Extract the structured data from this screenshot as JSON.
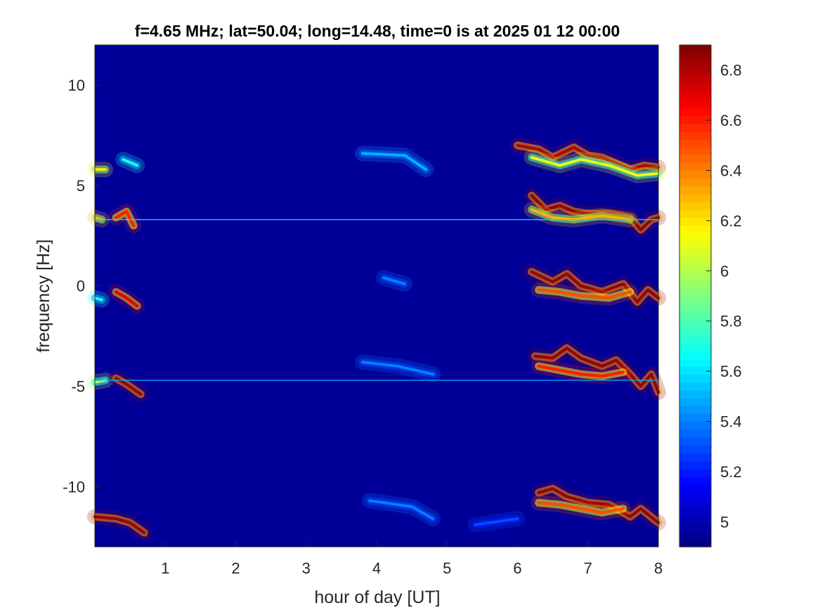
{
  "chart_data": {
    "type": "heatmap",
    "title": "f=4.65 MHz;  lat=50.04; long=14.48, time=0 is at 2025 01 12 00:00",
    "xlabel": "hour of day [UT]",
    "ylabel": "frequency [Hz]",
    "xlim": [
      0,
      8
    ],
    "ylim": [
      -13,
      12
    ],
    "xticks": [
      1,
      2,
      3,
      4,
      5,
      6,
      7,
      8
    ],
    "xtick_labels": [
      "1",
      "2",
      "3",
      "4",
      "5",
      "6",
      "7",
      "8"
    ],
    "yticks": [
      10,
      5,
      0,
      -5,
      -10
    ],
    "ytick_labels": [
      "10",
      "5",
      "0",
      "-5",
      "-10"
    ],
    "colorbar": {
      "range": [
        4.9,
        6.9
      ],
      "ticks": [
        6.8,
        6.6,
        6.4,
        6.2,
        6,
        5.8,
        5.6,
        5.4,
        5.2,
        5
      ],
      "tick_labels": [
        "6.8",
        "6.6",
        "6.4",
        "6.2",
        "6",
        "5.8",
        "5.6",
        "5.4",
        "5.2",
        "5"
      ],
      "colormap": "jet"
    },
    "background_value": 4.95,
    "constant_lines": [
      {
        "y": 3.3,
        "value": 5.6
      },
      {
        "y": -4.7,
        "value": 5.5
      }
    ],
    "traces": [
      {
        "points": [
          [
            0,
            5.8
          ],
          [
            0.15,
            5.8
          ]
        ],
        "value": 6.2
      },
      {
        "points": [
          [
            0.4,
            6.3
          ],
          [
            0.6,
            6.0
          ]
        ],
        "value": 5.7
      },
      {
        "points": [
          [
            0,
            3.4
          ],
          [
            0.1,
            3.3
          ]
        ],
        "value": 6.3
      },
      {
        "points": [
          [
            0.3,
            3.4
          ],
          [
            0.45,
            3.7
          ],
          [
            0.55,
            3.0
          ]
        ],
        "value": 6.6
      },
      {
        "points": [
          [
            0,
            -0.6
          ],
          [
            0.1,
            -0.7
          ]
        ],
        "value": 5.7
      },
      {
        "points": [
          [
            0.3,
            -0.3
          ],
          [
            0.45,
            -0.6
          ],
          [
            0.6,
            -1.0
          ]
        ],
        "value": 6.7
      },
      {
        "points": [
          [
            0,
            -4.8
          ],
          [
            0.15,
            -4.7
          ]
        ],
        "value": 6.0
      },
      {
        "points": [
          [
            0.3,
            -4.6
          ],
          [
            0.45,
            -4.9
          ],
          [
            0.65,
            -5.4
          ]
        ],
        "value": 6.85
      },
      {
        "points": [
          [
            0,
            -11.5
          ],
          [
            0.3,
            -11.6
          ],
          [
            0.5,
            -11.8
          ],
          [
            0.7,
            -12.3
          ]
        ],
        "value": 6.85
      },
      {
        "points": [
          [
            3.8,
            6.6
          ],
          [
            4.4,
            6.5
          ],
          [
            4.7,
            5.8
          ]
        ],
        "value": 5.5
      },
      {
        "points": [
          [
            4.1,
            0.4
          ],
          [
            4.4,
            0.1
          ]
        ],
        "value": 5.4
      },
      {
        "points": [
          [
            3.8,
            -3.8
          ],
          [
            4.3,
            -4.0
          ],
          [
            4.8,
            -4.4
          ]
        ],
        "value": 5.4
      },
      {
        "points": [
          [
            3.9,
            -10.7
          ],
          [
            4.5,
            -11.0
          ],
          [
            4.8,
            -11.6
          ]
        ],
        "value": 5.4
      },
      {
        "points": [
          [
            5.4,
            -11.9
          ],
          [
            6.0,
            -11.6
          ]
        ],
        "value": 5.3
      },
      {
        "points": [
          [
            6.0,
            7.0
          ],
          [
            6.3,
            6.8
          ],
          [
            6.5,
            6.4
          ],
          [
            6.8,
            6.9
          ],
          [
            7.0,
            6.5
          ],
          [
            7.2,
            6.4
          ],
          [
            7.6,
            5.8
          ],
          [
            7.8,
            6.0
          ],
          [
            8.0,
            5.9
          ]
        ],
        "value": 6.8
      },
      {
        "points": [
          [
            6.2,
            6.4
          ],
          [
            6.6,
            6.0
          ],
          [
            6.9,
            6.3
          ],
          [
            7.3,
            6.0
          ],
          [
            7.7,
            5.5
          ],
          [
            8.0,
            5.6
          ]
        ],
        "value": 6.1
      },
      {
        "points": [
          [
            6.2,
            4.5
          ],
          [
            6.4,
            3.8
          ],
          [
            6.6,
            4.0
          ],
          [
            6.8,
            3.7
          ],
          [
            7.0,
            3.6
          ],
          [
            7.3,
            3.6
          ],
          [
            7.6,
            3.4
          ],
          [
            7.75,
            2.8
          ],
          [
            7.9,
            3.3
          ],
          [
            8.0,
            3.4
          ]
        ],
        "value": 6.85
      },
      {
        "points": [
          [
            6.2,
            3.8
          ],
          [
            6.5,
            3.4
          ],
          [
            6.8,
            3.3
          ],
          [
            7.2,
            3.5
          ],
          [
            7.6,
            3.3
          ]
        ],
        "value": 6.3
      },
      {
        "points": [
          [
            6.2,
            0.7
          ],
          [
            6.5,
            0.2
          ],
          [
            6.7,
            0.6
          ],
          [
            6.9,
            0.0
          ],
          [
            7.2,
            -0.3
          ],
          [
            7.5,
            0.1
          ],
          [
            7.7,
            -0.8
          ],
          [
            7.85,
            -0.2
          ],
          [
            8.0,
            -0.6
          ]
        ],
        "value": 6.85
      },
      {
        "points": [
          [
            6.3,
            -0.2
          ],
          [
            6.6,
            -0.3
          ],
          [
            6.9,
            -0.5
          ],
          [
            7.3,
            -0.6
          ],
          [
            7.6,
            -0.3
          ]
        ],
        "value": 6.5
      },
      {
        "points": [
          [
            6.25,
            -3.5
          ],
          [
            6.5,
            -3.6
          ],
          [
            6.7,
            -3.1
          ],
          [
            6.9,
            -3.6
          ],
          [
            7.2,
            -4.0
          ],
          [
            7.4,
            -3.7
          ],
          [
            7.6,
            -4.4
          ],
          [
            7.75,
            -5.0
          ],
          [
            7.9,
            -4.4
          ],
          [
            8.0,
            -5.3
          ]
        ],
        "value": 6.85
      },
      {
        "points": [
          [
            6.3,
            -4.0
          ],
          [
            6.6,
            -4.2
          ],
          [
            6.9,
            -4.4
          ],
          [
            7.2,
            -4.5
          ],
          [
            7.5,
            -4.3
          ]
        ],
        "value": 6.6
      },
      {
        "points": [
          [
            6.3,
            -10.3
          ],
          [
            6.5,
            -10.1
          ],
          [
            6.7,
            -10.5
          ],
          [
            7.0,
            -10.8
          ],
          [
            7.3,
            -10.9
          ],
          [
            7.6,
            -11.5
          ],
          [
            7.75,
            -11.1
          ],
          [
            8.0,
            -11.8
          ]
        ],
        "value": 6.85
      },
      {
        "points": [
          [
            6.3,
            -10.8
          ],
          [
            6.6,
            -10.9
          ],
          [
            6.9,
            -11.1
          ],
          [
            7.2,
            -11.3
          ],
          [
            7.5,
            -11.1
          ]
        ],
        "value": 6.5
      }
    ]
  }
}
